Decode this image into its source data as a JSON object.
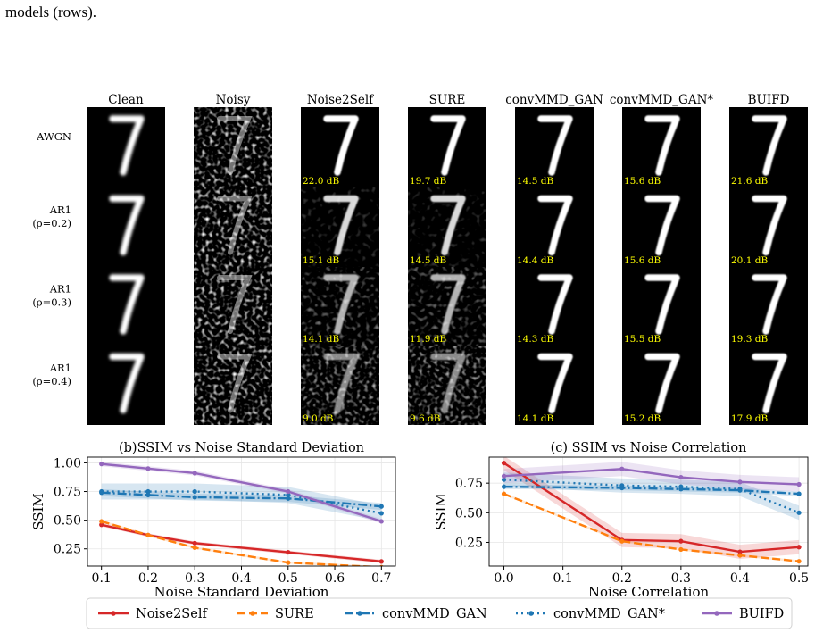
{
  "caption": "models (rows).",
  "image_grid": {
    "columns": [
      "Clean",
      "Noisy",
      "Noise2Self",
      "SURE",
      "convMMD_GAN",
      "convMMD_GAN*",
      "BUIFD"
    ],
    "rows": [
      {
        "label_lines": [
          "AWGN"
        ],
        "psnr": [
          "",
          "",
          "22.0 dB",
          "19.7 dB",
          "14.5 dB",
          "15.6 dB",
          "21.6 dB"
        ]
      },
      {
        "label_lines": [
          "AR1",
          "(ρ=0.2)"
        ],
        "psnr": [
          "",
          "",
          "15.1 dB",
          "14.5 dB",
          "14.4 dB",
          "15.6 dB",
          "20.1 dB"
        ]
      },
      {
        "label_lines": [
          "AR1",
          "(ρ=0.3)"
        ],
        "psnr": [
          "",
          "",
          "14.1 dB",
          "11.9 dB",
          "14.3 dB",
          "15.5 dB",
          "19.3 dB"
        ]
      },
      {
        "label_lines": [
          "AR1",
          "(ρ=0.4)"
        ],
        "psnr": [
          "",
          "",
          "9.0 dB",
          "9.6 dB",
          "14.1 dB",
          "15.2 dB",
          "17.9 dB"
        ]
      }
    ],
    "psnr_color": "#ffff00"
  },
  "chart_data": [
    {
      "type": "line",
      "title": "(b)SSIM vs Noise Standard Deviation",
      "xlabel": "Noise Standard Deviation",
      "ylabel": "SSIM",
      "xlim": [
        0.07,
        0.73
      ],
      "ylim": [
        0.1,
        1.05
      ],
      "xticks": [
        0.1,
        0.2,
        0.3,
        0.4,
        0.5,
        0.6,
        0.7
      ],
      "yticks": [
        0.25,
        0.5,
        0.75,
        1.0
      ],
      "ytick_labels": [
        "0.25",
        "0.50",
        "0.75",
        "1.00"
      ],
      "grid": true,
      "series": [
        {
          "name": "Noise2Self",
          "x": [
            0.1,
            0.2,
            0.3,
            0.5,
            0.7
          ],
          "values": [
            0.46,
            0.37,
            0.3,
            0.22,
            0.14
          ],
          "band": 0.015
        },
        {
          "name": "SURE",
          "x": [
            0.1,
            0.2,
            0.3,
            0.5,
            0.7
          ],
          "values": [
            0.49,
            0.37,
            0.26,
            0.13,
            0.09
          ],
          "band": 0.01
        },
        {
          "name": "convMMD_GAN",
          "x": [
            0.1,
            0.2,
            0.3,
            0.5,
            0.7
          ],
          "values": [
            0.74,
            0.72,
            0.7,
            0.69,
            0.62
          ],
          "band": 0.03
        },
        {
          "name": "convMMD_GAN*",
          "x": [
            0.1,
            0.2,
            0.3,
            0.5,
            0.7
          ],
          "values": [
            0.75,
            0.75,
            0.75,
            0.72,
            0.56
          ],
          "band": 0.07
        },
        {
          "name": "BUIFD",
          "x": [
            0.1,
            0.2,
            0.3,
            0.5,
            0.7
          ],
          "values": [
            0.99,
            0.95,
            0.91,
            0.75,
            0.49
          ],
          "band": 0.02
        }
      ]
    },
    {
      "type": "line",
      "title": "(c) SSIM vs Noise Correlation",
      "xlabel": "Noise Correlation",
      "ylabel": "SSIM",
      "xlim": [
        -0.025,
        0.515
      ],
      "ylim": [
        0.05,
        0.97
      ],
      "xticks": [
        0.0,
        0.1,
        0.2,
        0.3,
        0.4,
        0.5
      ],
      "yticks": [
        0.25,
        0.5,
        0.75
      ],
      "ytick_labels": [
        "0.25",
        "0.50",
        "0.75"
      ],
      "grid": true,
      "series": [
        {
          "name": "Noise2Self",
          "x": [
            0.0,
            0.2,
            0.3,
            0.4,
            0.5
          ],
          "values": [
            0.92,
            0.27,
            0.26,
            0.17,
            0.21
          ],
          "band": 0.06
        },
        {
          "name": "SURE",
          "x": [
            0.0,
            0.2,
            0.3,
            0.4,
            0.5
          ],
          "values": [
            0.66,
            0.26,
            0.19,
            0.14,
            0.09
          ],
          "band": 0.01
        },
        {
          "name": "convMMD_GAN",
          "x": [
            0.0,
            0.2,
            0.3,
            0.4,
            0.5
          ],
          "values": [
            0.72,
            0.71,
            0.7,
            0.69,
            0.66
          ],
          "band": 0.02
        },
        {
          "name": "convMMD_GAN*",
          "x": [
            0.0,
            0.2,
            0.3,
            0.4,
            0.5
          ],
          "values": [
            0.78,
            0.73,
            0.72,
            0.7,
            0.5
          ],
          "band": 0.06
        },
        {
          "name": "BUIFD",
          "x": [
            0.0,
            0.2,
            0.3,
            0.4,
            0.5
          ],
          "values": [
            0.81,
            0.87,
            0.8,
            0.76,
            0.74
          ],
          "band": 0.06
        }
      ]
    }
  ],
  "legend": {
    "placement": "bottom",
    "entries": [
      {
        "name": "Noise2Self",
        "color": "#d62728",
        "dash": "solid"
      },
      {
        "name": "SURE",
        "color": "#ff7f0e",
        "dash": "dashed"
      },
      {
        "name": "convMMD_GAN",
        "color": "#1f77b4",
        "dash": "dashdot"
      },
      {
        "name": "convMMD_GAN*",
        "color": "#1f77b4",
        "dash": "dotted"
      },
      {
        "name": "BUIFD",
        "color": "#9467bd",
        "dash": "solid"
      }
    ]
  }
}
